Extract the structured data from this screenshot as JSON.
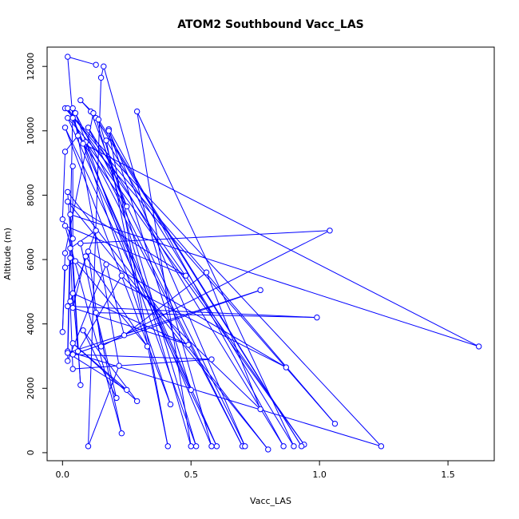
{
  "chart_data": {
    "type": "line",
    "title": "ATOM2 Southbound Vacc_LAS",
    "xlabel": "Vacc_LAS",
    "ylabel": "Altitude (m)",
    "xlim": [
      -0.06,
      1.68
    ],
    "ylim": [
      -250,
      12600
    ],
    "xticks": [
      0.0,
      0.5,
      1.0,
      1.5
    ],
    "xtick_labels": [
      "0.0",
      "0.5",
      "1.0",
      "1.5"
    ],
    "yticks": [
      0,
      2000,
      4000,
      6000,
      8000,
      10000,
      12000
    ],
    "ytick_labels": [
      "0",
      "2000",
      "4000",
      "6000",
      "8000",
      "10000",
      "12000"
    ],
    "series_color": "#0000ff",
    "marker": "open-circle",
    "points": [
      {
        "x": 0.02,
        "y": 12300
      },
      {
        "x": 0.13,
        "y": 12050
      },
      {
        "x": 0.16,
        "y": 12000
      },
      {
        "x": 0.15,
        "y": 11650
      },
      {
        "x": 0.07,
        "y": 10950
      },
      {
        "x": 0.01,
        "y": 10700
      },
      {
        "x": 0.02,
        "y": 10700
      },
      {
        "x": 0.04,
        "y": 10700
      },
      {
        "x": 0.11,
        "y": 10600
      },
      {
        "x": 0.12,
        "y": 10550
      },
      {
        "x": 0.29,
        "y": 10600
      },
      {
        "x": 0.05,
        "y": 10550
      },
      {
        "x": 0.04,
        "y": 10400
      },
      {
        "x": 0.02,
        "y": 10400
      },
      {
        "x": 0.13,
        "y": 10400
      },
      {
        "x": 0.14,
        "y": 10350
      },
      {
        "x": 0.01,
        "y": 10100
      },
      {
        "x": 0.1,
        "y": 10100
      },
      {
        "x": 0.18,
        "y": 10050
      },
      {
        "x": 0.18,
        "y": 10000
      },
      {
        "x": 0.06,
        "y": 9850
      },
      {
        "x": 0.17,
        "y": 9700
      },
      {
        "x": 0.09,
        "y": 9650
      },
      {
        "x": 0.08,
        "y": 9600
      },
      {
        "x": 0.01,
        "y": 9350
      },
      {
        "x": 0.04,
        "y": 8900
      },
      {
        "x": 0.02,
        "y": 8100
      },
      {
        "x": 0.02,
        "y": 7800
      },
      {
        "x": 0.25,
        "y": 7650
      },
      {
        "x": 0.03,
        "y": 7400
      },
      {
        "x": 0.0,
        "y": 7250
      },
      {
        "x": 0.01,
        "y": 7050
      },
      {
        "x": 1.04,
        "y": 6900
      },
      {
        "x": 0.13,
        "y": 6900
      },
      {
        "x": 0.04,
        "y": 6650
      },
      {
        "x": 0.07,
        "y": 6500
      },
      {
        "x": 0.03,
        "y": 6350
      },
      {
        "x": 0.1,
        "y": 6250
      },
      {
        "x": 0.01,
        "y": 6200
      },
      {
        "x": 0.09,
        "y": 6100
      },
      {
        "x": 0.03,
        "y": 6050
      },
      {
        "x": 0.05,
        "y": 5950
      },
      {
        "x": 0.17,
        "y": 5850
      },
      {
        "x": 0.01,
        "y": 5750
      },
      {
        "x": 0.56,
        "y": 5600
      },
      {
        "x": 0.48,
        "y": 5500
      },
      {
        "x": 0.23,
        "y": 5500
      },
      {
        "x": 0.77,
        "y": 5050
      },
      {
        "x": 0.04,
        "y": 4950
      },
      {
        "x": 0.03,
        "y": 4700
      },
      {
        "x": 0.02,
        "y": 4550
      },
      {
        "x": 0.04,
        "y": 4500
      },
      {
        "x": 0.13,
        "y": 4350
      },
      {
        "x": 0.99,
        "y": 4200
      },
      {
        "x": 0.08,
        "y": 3800
      },
      {
        "x": 0.0,
        "y": 3750
      },
      {
        "x": 0.24,
        "y": 3650
      },
      {
        "x": 0.49,
        "y": 3350
      },
      {
        "x": 0.04,
        "y": 3400
      },
      {
        "x": 0.15,
        "y": 3300
      },
      {
        "x": 0.33,
        "y": 3300
      },
      {
        "x": 1.62,
        "y": 3300
      },
      {
        "x": 0.02,
        "y": 3150
      },
      {
        "x": 0.06,
        "y": 3150
      },
      {
        "x": 0.02,
        "y": 3100
      },
      {
        "x": 0.04,
        "y": 3050
      },
      {
        "x": 0.58,
        "y": 2900
      },
      {
        "x": 0.02,
        "y": 2850
      },
      {
        "x": 0.22,
        "y": 2700
      },
      {
        "x": 0.87,
        "y": 2650
      },
      {
        "x": 0.04,
        "y": 2600
      },
      {
        "x": 0.07,
        "y": 2100
      },
      {
        "x": 0.25,
        "y": 1950
      },
      {
        "x": 0.5,
        "y": 1950
      },
      {
        "x": 0.21,
        "y": 1700
      },
      {
        "x": 0.29,
        "y": 1600
      },
      {
        "x": 0.42,
        "y": 1500
      },
      {
        "x": 0.77,
        "y": 1350
      },
      {
        "x": 1.06,
        "y": 900
      },
      {
        "x": 0.23,
        "y": 600
      },
      {
        "x": 0.1,
        "y": 200
      },
      {
        "x": 0.41,
        "y": 200
      },
      {
        "x": 0.5,
        "y": 200
      },
      {
        "x": 0.52,
        "y": 200
      },
      {
        "x": 0.58,
        "y": 200
      },
      {
        "x": 0.6,
        "y": 200
      },
      {
        "x": 0.7,
        "y": 200
      },
      {
        "x": 0.71,
        "y": 200
      },
      {
        "x": 0.86,
        "y": 200
      },
      {
        "x": 0.9,
        "y": 200
      },
      {
        "x": 0.94,
        "y": 250
      },
      {
        "x": 0.93,
        "y": 200
      },
      {
        "x": 1.24,
        "y": 200
      },
      {
        "x": 0.8,
        "y": 100
      }
    ],
    "path_order": [
      0,
      1,
      0,
      12,
      12,
      84,
      84,
      2,
      2,
      3,
      3,
      80,
      80,
      68,
      68,
      7,
      7,
      62,
      62,
      92,
      92,
      5,
      5,
      78,
      78,
      13,
      13,
      73,
      73,
      18,
      18,
      88,
      88,
      17,
      17,
      87,
      87,
      19,
      19,
      81,
      81,
      21,
      21,
      89,
      89,
      10,
      10,
      82,
      82,
      14,
      14,
      91,
      91,
      15,
      15,
      83,
      83,
      11,
      11,
      86,
      86,
      22,
      22,
      90,
      90,
      6,
      6,
      85,
      85,
      16,
      16,
      76,
      76,
      23,
      23,
      61,
      61,
      29,
      29,
      71,
      71,
      26,
      26,
      93,
      93,
      27,
      27,
      45,
      45,
      31,
      31,
      79,
      79,
      35,
      35,
      32,
      32,
      59,
      59,
      37,
      37,
      69,
      69,
      40,
      40,
      67,
      67,
      42,
      42,
      56,
      56,
      44,
      44,
      77,
      77,
      46,
      46,
      63,
      63,
      48,
      48,
      57,
      57,
      50,
      50,
      53,
      53,
      52,
      52,
      74,
      74,
      54,
      54,
      75,
      75,
      58,
      58,
      72,
      72,
      64,
      64,
      47,
      47,
      65,
      65,
      66,
      66,
      70,
      70,
      49,
      49,
      33,
      33,
      36,
      36,
      51,
      51,
      39,
      39,
      60,
      60,
      41,
      41,
      43,
      43,
      55,
      55,
      38,
      38,
      9,
      9,
      4,
      4,
      8,
      8,
      28,
      28,
      20,
      20,
      24,
      24,
      30,
      30,
      34,
      34,
      25
    ]
  }
}
